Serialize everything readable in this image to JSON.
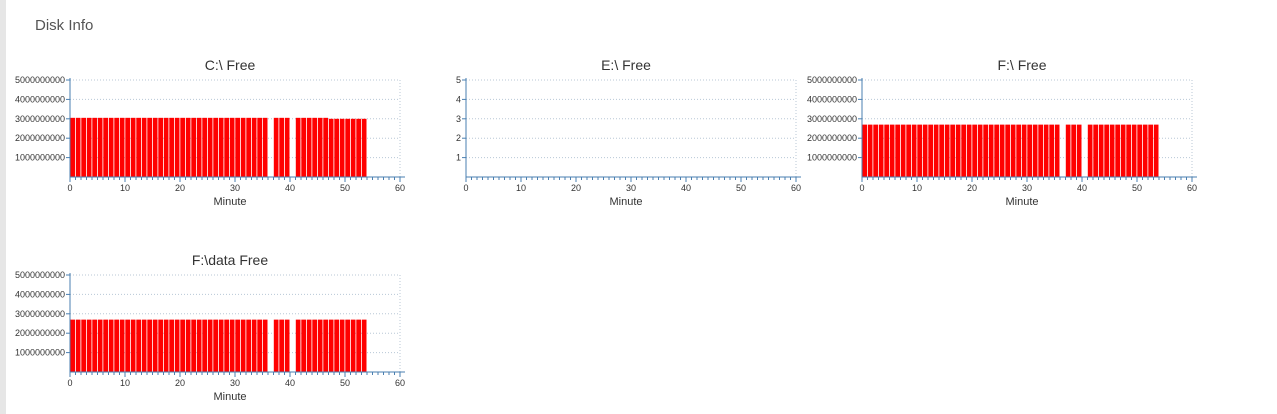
{
  "page": {
    "title": "Disk Info"
  },
  "colors": {
    "bar": "#ff0000",
    "axis": "#4a7fb0",
    "grid": "#b8c7d6",
    "text": "#333333"
  },
  "chart_data": [
    {
      "type": "bar",
      "title": "C:\\ Free",
      "xlabel": "Minute",
      "ylabel": "",
      "xlim": [
        0,
        60
      ],
      "ylim": [
        0,
        5
      ],
      "x_ticks": [
        0,
        10,
        20,
        30,
        40,
        50,
        60
      ],
      "y_tick_labels": [
        "1000000000",
        "2000000000",
        "3000000000",
        "4000000000",
        "5000000000"
      ],
      "grid": true,
      "x": [
        0,
        1,
        2,
        3,
        4,
        5,
        6,
        7,
        8,
        9,
        10,
        11,
        12,
        13,
        14,
        15,
        16,
        17,
        18,
        19,
        20,
        21,
        22,
        23,
        24,
        25,
        26,
        27,
        28,
        29,
        30,
        31,
        32,
        33,
        34,
        35,
        37,
        38,
        39,
        41,
        42,
        43,
        44,
        45,
        46,
        47,
        48,
        49,
        50,
        51,
        52,
        53
      ],
      "values": [
        3.05,
        3.05,
        3.05,
        3.05,
        3.05,
        3.05,
        3.05,
        3.05,
        3.05,
        3.05,
        3.05,
        3.05,
        3.05,
        3.05,
        3.05,
        3.05,
        3.05,
        3.05,
        3.05,
        3.05,
        3.05,
        3.05,
        3.05,
        3.05,
        3.05,
        3.05,
        3.05,
        3.05,
        3.05,
        3.05,
        3.05,
        3.05,
        3.05,
        3.05,
        3.05,
        3.05,
        3.05,
        3.05,
        3.05,
        3.05,
        3.05,
        3.05,
        3.05,
        3.05,
        3.05,
        3.0,
        3.0,
        3.0,
        3.0,
        3.0,
        3.0,
        3.0
      ]
    },
    {
      "type": "bar",
      "title": "E:\\ Free",
      "xlabel": "Minute",
      "ylabel": "",
      "xlim": [
        0,
        60
      ],
      "ylim": [
        0,
        5
      ],
      "x_ticks": [
        0,
        10,
        20,
        30,
        40,
        50,
        60
      ],
      "y_tick_labels": [
        "1",
        "2",
        "3",
        "4",
        "5"
      ],
      "grid": true,
      "x": [],
      "values": []
    },
    {
      "type": "bar",
      "title": "F:\\ Free",
      "xlabel": "Minute",
      "ylabel": "",
      "xlim": [
        0,
        60
      ],
      "ylim": [
        0,
        5
      ],
      "x_ticks": [
        0,
        10,
        20,
        30,
        40,
        50,
        60
      ],
      "y_tick_labels": [
        "1000000000",
        "2000000000",
        "3000000000",
        "4000000000",
        "5000000000"
      ],
      "grid": true,
      "x": [
        0,
        1,
        2,
        3,
        4,
        5,
        6,
        7,
        8,
        9,
        10,
        11,
        12,
        13,
        14,
        15,
        16,
        17,
        18,
        19,
        20,
        21,
        22,
        23,
        24,
        25,
        26,
        27,
        28,
        29,
        30,
        31,
        32,
        33,
        34,
        35,
        37,
        38,
        39,
        41,
        42,
        43,
        44,
        45,
        46,
        47,
        48,
        49,
        50,
        51,
        52,
        53
      ],
      "values": [
        2.7,
        2.7,
        2.7,
        2.7,
        2.7,
        2.7,
        2.7,
        2.7,
        2.7,
        2.7,
        2.7,
        2.7,
        2.7,
        2.7,
        2.7,
        2.7,
        2.7,
        2.7,
        2.7,
        2.7,
        2.7,
        2.7,
        2.7,
        2.7,
        2.7,
        2.7,
        2.7,
        2.7,
        2.7,
        2.7,
        2.7,
        2.7,
        2.7,
        2.7,
        2.7,
        2.7,
        2.7,
        2.7,
        2.7,
        2.7,
        2.7,
        2.7,
        2.7,
        2.7,
        2.7,
        2.7,
        2.7,
        2.7,
        2.7,
        2.7,
        2.7,
        2.7
      ]
    },
    {
      "type": "bar",
      "title": "F:\\data Free",
      "xlabel": "Minute",
      "ylabel": "",
      "xlim": [
        0,
        60
      ],
      "ylim": [
        0,
        5
      ],
      "x_ticks": [
        0,
        10,
        20,
        30,
        40,
        50,
        60
      ],
      "y_tick_labels": [
        "1000000000",
        "2000000000",
        "3000000000",
        "4000000000",
        "5000000000"
      ],
      "grid": true,
      "x": [
        0,
        1,
        2,
        3,
        4,
        5,
        6,
        7,
        8,
        9,
        10,
        11,
        12,
        13,
        14,
        15,
        16,
        17,
        18,
        19,
        20,
        21,
        22,
        23,
        24,
        25,
        26,
        27,
        28,
        29,
        30,
        31,
        32,
        33,
        34,
        35,
        37,
        38,
        39,
        41,
        42,
        43,
        44,
        45,
        46,
        47,
        48,
        49,
        50,
        51,
        52,
        53
      ],
      "values": [
        2.7,
        2.7,
        2.7,
        2.7,
        2.7,
        2.7,
        2.7,
        2.7,
        2.7,
        2.7,
        2.7,
        2.7,
        2.7,
        2.7,
        2.7,
        2.7,
        2.7,
        2.7,
        2.7,
        2.7,
        2.7,
        2.7,
        2.7,
        2.7,
        2.7,
        2.7,
        2.7,
        2.7,
        2.7,
        2.7,
        2.7,
        2.7,
        2.7,
        2.7,
        2.7,
        2.7,
        2.7,
        2.7,
        2.7,
        2.7,
        2.7,
        2.7,
        2.7,
        2.7,
        2.7,
        2.7,
        2.7,
        2.7,
        2.7,
        2.7,
        2.7,
        2.7
      ]
    }
  ]
}
